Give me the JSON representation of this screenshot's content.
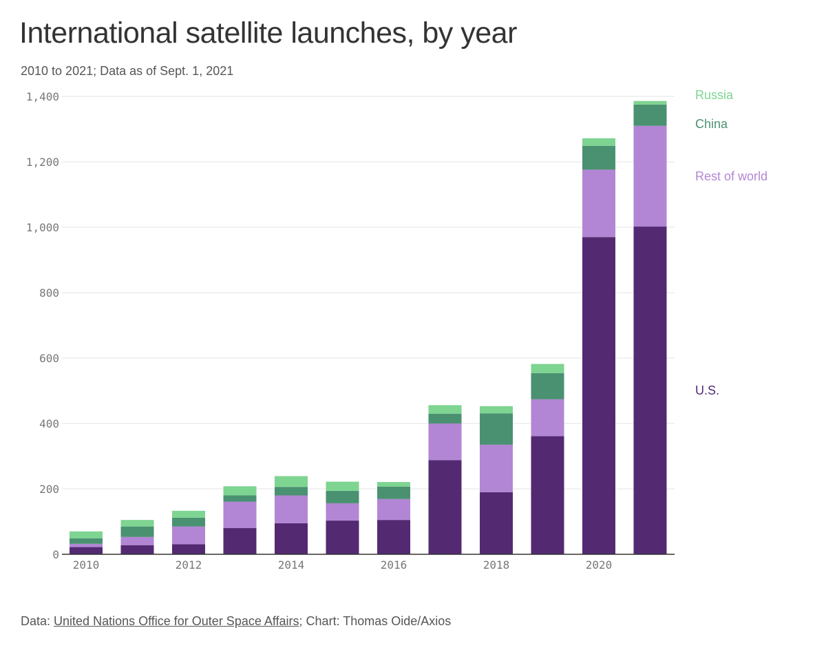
{
  "title": "International satellite launches, by year",
  "subtitle": "2010 to 2021; Data as of Sept. 1, 2021",
  "source": {
    "prefix": "Data: ",
    "link_text": "United Nations Office for Outer Space Affairs",
    "suffix": "; Chart: Thomas Oide/Axios"
  },
  "chart_data": {
    "type": "bar",
    "stacked": true,
    "categories": [
      "2010",
      "2011",
      "2012",
      "2013",
      "2014",
      "2015",
      "2016",
      "2017",
      "2018",
      "2019",
      "2020",
      "2021"
    ],
    "x_tick_labels": [
      "2010",
      "2012",
      "2014",
      "2016",
      "2018",
      "2020"
    ],
    "y_ticks": [
      0,
      200,
      400,
      600,
      800,
      1000,
      1200,
      1400
    ],
    "y_tick_labels": [
      "0",
      "200",
      "400",
      "600",
      "800",
      "1,000",
      "1,200",
      "1,400"
    ],
    "ylim": [
      0,
      1400
    ],
    "grid": true,
    "legend_placement": "right, inline labels",
    "series": [
      {
        "name": "U.S.",
        "color": "#532a72",
        "values": [
          22,
          28,
          31,
          80,
          95,
          103,
          105,
          288,
          190,
          361,
          970,
          1002
        ]
      },
      {
        "name": "Rest of world",
        "color": "#b286d4",
        "values": [
          10,
          25,
          54,
          81,
          85,
          53,
          64,
          112,
          145,
          113,
          206,
          308
        ]
      },
      {
        "name": "China",
        "color": "#4a9171",
        "values": [
          17,
          32,
          27,
          19,
          26,
          38,
          38,
          30,
          96,
          80,
          73,
          65
        ]
      },
      {
        "name": "Russia",
        "color": "#7ed491",
        "values": [
          21,
          20,
          21,
          28,
          33,
          28,
          14,
          26,
          22,
          28,
          23,
          11
        ]
      }
    ],
    "legend_order": [
      "Russia",
      "China",
      "Rest of world",
      "U.S."
    ]
  }
}
